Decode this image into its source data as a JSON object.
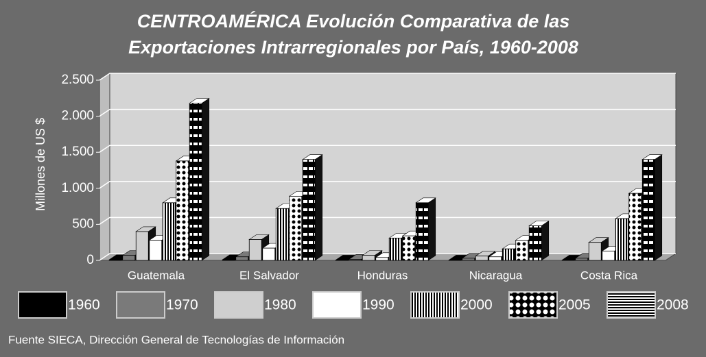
{
  "chart_data": {
    "type": "bar3d",
    "title": [
      "CENTROAMÉRICA Evolución Comparativa de las",
      "Exportaciones Intrarregionales por País, 1960-2008"
    ],
    "y_label": "Millones de US $",
    "source": "Fuente SIECA, Dirección General de Tecnologías de Información",
    "categories": [
      "Guatemala",
      "El Salvador",
      "Honduras",
      "Nicaragua",
      "Costa Rica"
    ],
    "series": [
      {
        "name": "1960",
        "color": "#000000",
        "pattern": "solid",
        "values": [
          10,
          10,
          5,
          5,
          5
        ]
      },
      {
        "name": "1970",
        "color": "#7a7a7a",
        "pattern": "solid",
        "values": [
          70,
          50,
          15,
          30,
          30
        ]
      },
      {
        "name": "1980",
        "color": "#cfcfcf",
        "pattern": "solid",
        "values": [
          400,
          290,
          70,
          60,
          250
        ]
      },
      {
        "name": "1990",
        "color": "#ffffff",
        "pattern": "solid",
        "values": [
          280,
          170,
          40,
          50,
          130
        ]
      },
      {
        "name": "2000",
        "color": "#000000",
        "pattern": "vertical",
        "values": [
          800,
          720,
          310,
          160,
          580
        ]
      },
      {
        "name": "2005",
        "color": "#000000",
        "pattern": "dots",
        "values": [
          1380,
          890,
          340,
          280,
          930
        ]
      },
      {
        "name": "2008",
        "color": "#000000",
        "pattern": "horizontal",
        "values": [
          2180,
          1400,
          800,
          480,
          1400
        ]
      }
    ],
    "ylim": [
      0,
      2500
    ],
    "yticks": [
      0,
      {
        "value": 500,
        "label": "500"
      },
      {
        "value": 1000,
        "label": "1.000"
      },
      {
        "value": 1500,
        "label": "1.500"
      },
      {
        "value": 2000,
        "label": "2.000"
      },
      {
        "value": 2500,
        "label": "2.500"
      }
    ],
    "grid": true
  }
}
